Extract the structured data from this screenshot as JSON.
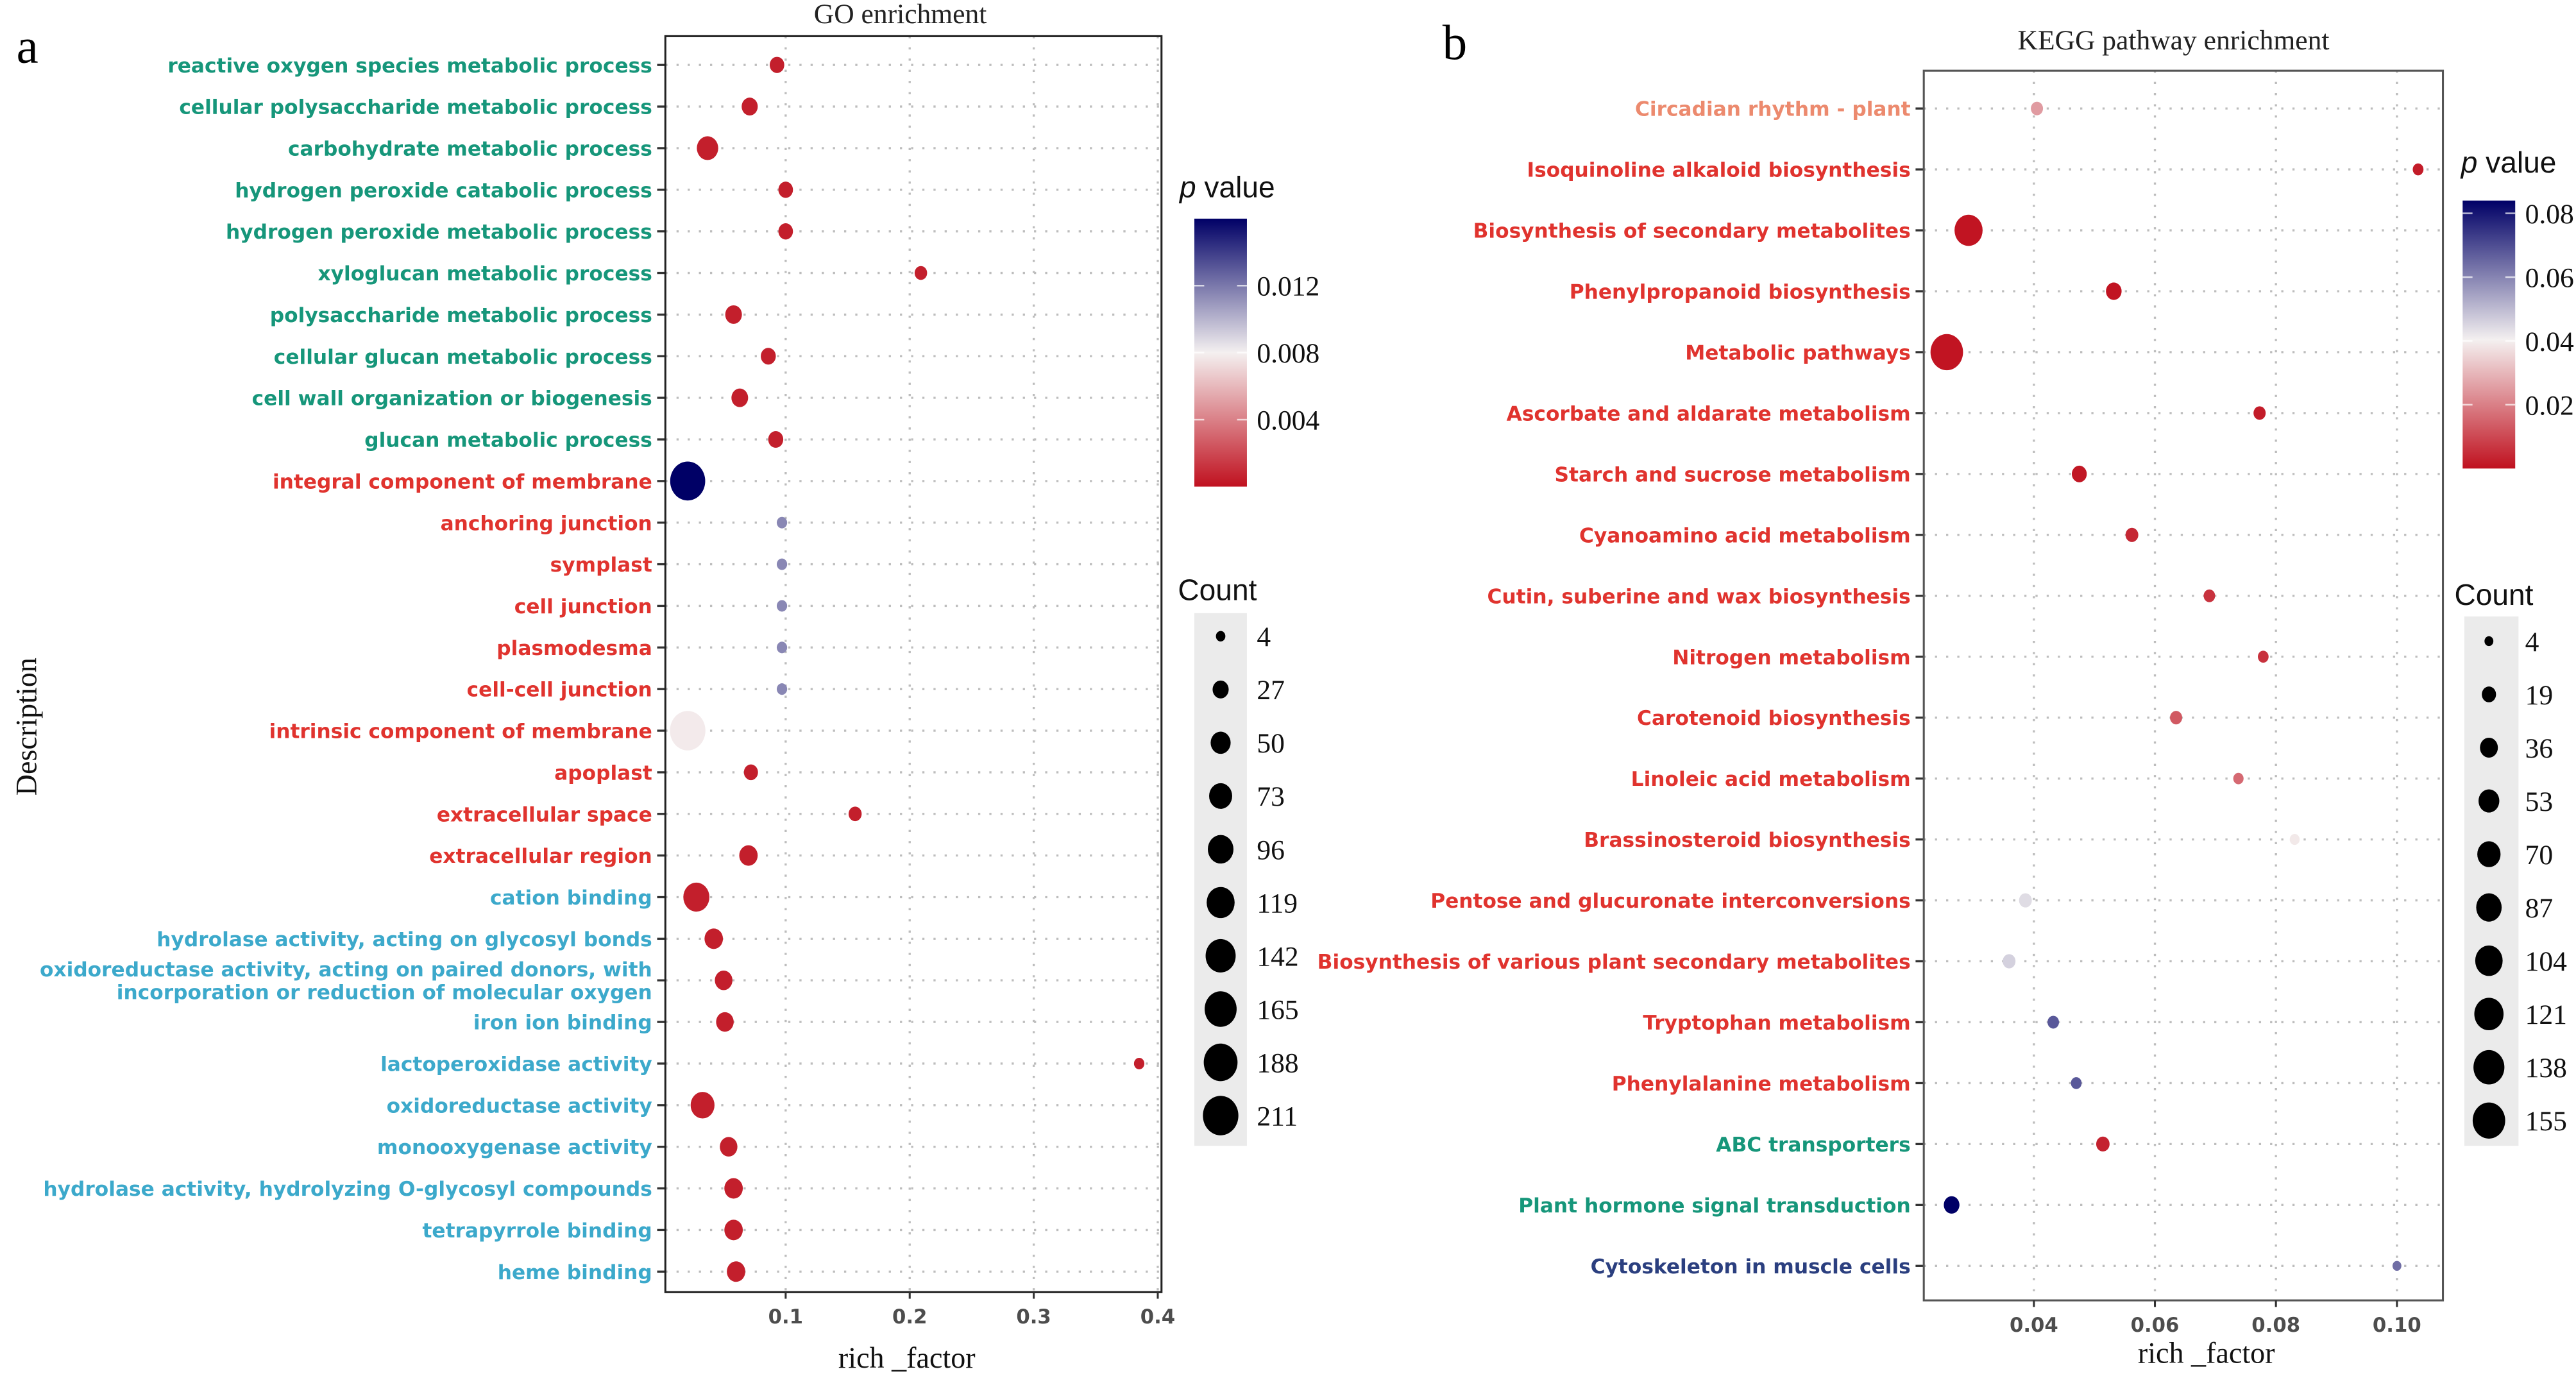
{
  "chart_data": [
    {
      "type": "scatter",
      "panel": "a",
      "title": "GO enrichment",
      "xlabel": "rich _factor",
      "ylabel": "Description",
      "xlim": [
        0.003,
        0.403
      ],
      "xticks": [
        0.1,
        0.2,
        0.3,
        0.4
      ],
      "xtick_labels": [
        "0.1",
        "0.2",
        "0.3",
        "0.4"
      ],
      "grid": true,
      "color_legend": {
        "title_italic": "p",
        "title_rest": " value",
        "range": [
          0,
          0.016
        ],
        "ticks": [
          0.004,
          0.008,
          0.012
        ],
        "tick_labels": [
          "0.004",
          "0.008",
          "0.012"
        ],
        "low_color": "#c0111f",
        "mid_color": "#f4f0f0",
        "high_color": "#000066",
        "placement": "right"
      },
      "size_legend": {
        "title": "Count",
        "values": [
          4,
          27,
          50,
          73,
          96,
          119,
          142,
          165,
          188,
          211
        ],
        "placement": "right"
      },
      "points": [
        {
          "label": "reactive oxygen species metabolic process",
          "group": "BP",
          "x": 0.093,
          "count": 20,
          "p": 0.0005
        },
        {
          "label": "cellular polysaccharide metabolic process",
          "group": "BP",
          "x": 0.071,
          "count": 27,
          "p": 0.0005
        },
        {
          "label": "carbohydrate metabolic process",
          "group": "BP",
          "x": 0.037,
          "count": 60,
          "p": 0.0005
        },
        {
          "label": "hydrogen peroxide catabolic process",
          "group": "BP",
          "x": 0.1,
          "count": 20,
          "p": 0.0005
        },
        {
          "label": "hydrogen peroxide metabolic process",
          "group": "BP",
          "x": 0.1,
          "count": 20,
          "p": 0.0005
        },
        {
          "label": "xyloglucan metabolic process",
          "group": "BP",
          "x": 0.209,
          "count": 12,
          "p": 0.0005
        },
        {
          "label": "polysaccharide metabolic process",
          "group": "BP",
          "x": 0.058,
          "count": 30,
          "p": 0.0005
        },
        {
          "label": "cellular glucan metabolic process",
          "group": "BP",
          "x": 0.086,
          "count": 22,
          "p": 0.0005
        },
        {
          "label": "cell wall organization or biogenesis",
          "group": "BP",
          "x": 0.063,
          "count": 30,
          "p": 0.0005
        },
        {
          "label": "glucan metabolic process",
          "group": "BP",
          "x": 0.092,
          "count": 22,
          "p": 0.0005
        },
        {
          "label": "integral component of membrane",
          "group": "CC",
          "x": 0.021,
          "count": 205,
          "p": 0.016
        },
        {
          "label": "anchoring junction",
          "group": "CC",
          "x": 0.097,
          "count": 6,
          "p": 0.0115
        },
        {
          "label": "symplast",
          "group": "CC",
          "x": 0.097,
          "count": 6,
          "p": 0.0115
        },
        {
          "label": "cell junction",
          "group": "CC",
          "x": 0.097,
          "count": 6,
          "p": 0.0115
        },
        {
          "label": "plasmodesma",
          "group": "CC",
          "x": 0.097,
          "count": 6,
          "p": 0.0115
        },
        {
          "label": "cell-cell junction",
          "group": "CC",
          "x": 0.097,
          "count": 6,
          "p": 0.0115
        },
        {
          "label": "intrinsic component of membrane",
          "group": "CC",
          "x": 0.021,
          "count": 211,
          "p": 0.0078
        },
        {
          "label": "apoplast",
          "group": "CC",
          "x": 0.072,
          "count": 18,
          "p": 0.0005
        },
        {
          "label": "extracellular space",
          "group": "CC",
          "x": 0.156,
          "count": 14,
          "p": 0.0005
        },
        {
          "label": "extracellular region",
          "group": "CC",
          "x": 0.07,
          "count": 40,
          "p": 0.0005
        },
        {
          "label": "cation binding",
          "group": "MF",
          "x": 0.028,
          "count": 100,
          "p": 0.0005
        },
        {
          "label": "hydrolase activity, acting on glycosyl bonds",
          "group": "MF",
          "x": 0.042,
          "count": 40,
          "p": 0.0005
        },
        {
          "label": "oxidoreductase activity, acting on paired donors, with\nincorporation or reduction of molecular oxygen",
          "group": "MF",
          "x": 0.05,
          "count": 35,
          "p": 0.0005
        },
        {
          "label": "iron ion binding",
          "group": "MF",
          "x": 0.051,
          "count": 35,
          "p": 0.0005
        },
        {
          "label": "lactoperoxidase activity",
          "group": "MF",
          "x": 0.385,
          "count": 6,
          "p": 0.0005
        },
        {
          "label": "oxidoreductase activity",
          "group": "MF",
          "x": 0.033,
          "count": 80,
          "p": 0.0005
        },
        {
          "label": "monooxygenase activity",
          "group": "MF",
          "x": 0.054,
          "count": 35,
          "p": 0.0005
        },
        {
          "label": "hydrolase activity, hydrolyzing O-glycosyl compounds",
          "group": "MF",
          "x": 0.058,
          "count": 40,
          "p": 0.0005
        },
        {
          "label": "tetrapyrrole binding",
          "group": "MF",
          "x": 0.058,
          "count": 40,
          "p": 0.0005
        },
        {
          "label": "heme binding",
          "group": "MF",
          "x": 0.06,
          "count": 40,
          "p": 0.0005
        }
      ],
      "group_colors": {
        "BP": "#16967a",
        "CC": "#e0332e",
        "MF": "#3ca9cb"
      }
    },
    {
      "type": "scatter",
      "panel": "b",
      "title": "KEGG pathway enrichment",
      "xlabel": "rich _factor",
      "ylabel": "",
      "xlim": [
        0.0218,
        0.1076
      ],
      "xticks": [
        0.04,
        0.06,
        0.08,
        0.1
      ],
      "xtick_labels": [
        "0.04",
        "0.06",
        "0.08",
        "0.10"
      ],
      "grid": true,
      "color_legend": {
        "title_italic": "p",
        "title_rest": " value",
        "range": [
          0.0,
          0.084
        ],
        "ticks": [
          0.02,
          0.04,
          0.06,
          0.08
        ],
        "tick_labels": [
          "0.02",
          "0.04",
          "0.06",
          "0.08"
        ],
        "low_color": "#c0111f",
        "mid_color": "#f4f0f0",
        "high_color": "#000066",
        "placement": "right"
      },
      "size_legend": {
        "title": "Count",
        "values": [
          4,
          19,
          36,
          53,
          70,
          87,
          104,
          121,
          138,
          155
        ],
        "placement": "right"
      },
      "points": [
        {
          "label": "Circadian rhythm - plant",
          "x": 0.0405,
          "count": 12,
          "p": 0.025,
          "label_color": "#ec8a6e"
        },
        {
          "label": "Isoquinoline alkaloid biosynthesis",
          "x": 0.1035,
          "count": 8,
          "p": 0.002,
          "label_color": "#e0332e"
        },
        {
          "label": "Biosynthesis of secondary metabolites",
          "x": 0.0292,
          "count": 110,
          "p": 0.0005,
          "label_color": "#e0332e"
        },
        {
          "label": "Phenylpropanoid biosynthesis",
          "x": 0.0532,
          "count": 25,
          "p": 0.0005,
          "label_color": "#e0332e"
        },
        {
          "label": "Metabolic pathways",
          "x": 0.0256,
          "count": 155,
          "p": 0.0005,
          "label_color": "#e0332e"
        },
        {
          "label": "Ascorbate and aldarate metabolism",
          "x": 0.0773,
          "count": 12,
          "p": 0.002,
          "label_color": "#e0332e"
        },
        {
          "label": "Starch and sucrose metabolism",
          "x": 0.0475,
          "count": 22,
          "p": 0.001,
          "label_color": "#e0332e"
        },
        {
          "label": "Cyanoamino acid metabolism",
          "x": 0.0562,
          "count": 14,
          "p": 0.004,
          "label_color": "#e0332e"
        },
        {
          "label": "Cutin, suberine and wax biosynthesis",
          "x": 0.069,
          "count": 10,
          "p": 0.006,
          "label_color": "#e0332e"
        },
        {
          "label": "Nitrogen metabolism",
          "x": 0.0779,
          "count": 8,
          "p": 0.006,
          "label_color": "#e0332e"
        },
        {
          "label": "Carotenoid biosynthesis",
          "x": 0.0635,
          "count": 12,
          "p": 0.013,
          "label_color": "#e0332e"
        },
        {
          "label": "Linoleic acid metabolism",
          "x": 0.0738,
          "count": 7,
          "p": 0.016,
          "label_color": "#e0332e"
        },
        {
          "label": "Brassinosteroid biosynthesis",
          "x": 0.0831,
          "count": 6,
          "p": 0.039,
          "label_color": "#e0332e"
        },
        {
          "label": "Pentose and glucuronate interconversions",
          "x": 0.0386,
          "count": 14,
          "p": 0.044,
          "label_color": "#e0332e"
        },
        {
          "label": "Biosynthesis of various plant secondary metabolites",
          "x": 0.0359,
          "count": 14,
          "p": 0.046,
          "label_color": "#e0332e"
        },
        {
          "label": "Tryptophan metabolism",
          "x": 0.0432,
          "count": 10,
          "p": 0.068,
          "label_color": "#e0332e"
        },
        {
          "label": "Phenylalanine metabolism",
          "x": 0.047,
          "count": 8,
          "p": 0.068,
          "label_color": "#e0332e"
        },
        {
          "label": "ABC transporters",
          "x": 0.0514,
          "count": 16,
          "p": 0.003,
          "label_color": "#16967a"
        },
        {
          "label": "Plant hormone signal transduction",
          "x": 0.0264,
          "count": 25,
          "p": 0.084,
          "label_color": "#16967a"
        },
        {
          "label": "Cytoskeleton in muscle cells",
          "x": 0.1,
          "count": 4,
          "p": 0.064,
          "label_color": "#2b3f7f"
        }
      ]
    }
  ],
  "panel_letters": [
    "a",
    "b"
  ]
}
